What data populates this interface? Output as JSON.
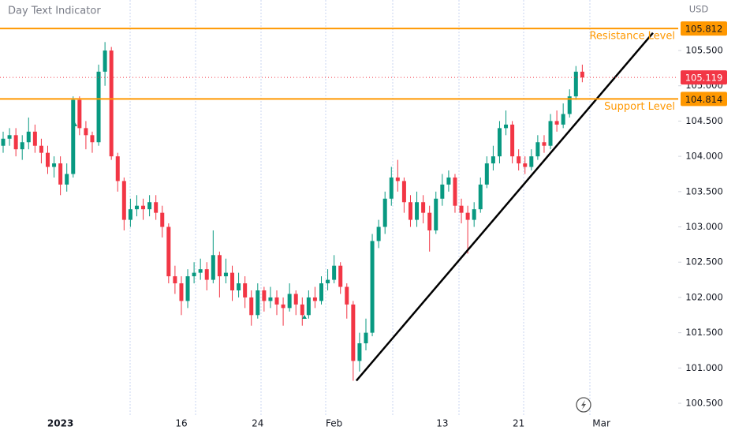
{
  "chart_data": {
    "type": "candlestick",
    "title": "Day Text Indicator",
    "currency": "USD",
    "categories": [
      null,
      null,
      null,
      null,
      null,
      null,
      null,
      null,
      null,
      "2023",
      null,
      null,
      null,
      null,
      null,
      null,
      null,
      null,
      null,
      null,
      null,
      null,
      null,
      null,
      null,
      null,
      null,
      null,
      "16",
      null,
      null,
      null,
      null,
      null,
      null,
      null,
      null,
      null,
      null,
      null,
      "24",
      null,
      null,
      null,
      null,
      null,
      null,
      null,
      null,
      null,
      null,
      null,
      "Feb",
      null,
      null,
      null,
      null,
      null,
      null,
      null,
      null,
      null,
      null,
      null,
      null,
      null,
      null,
      null,
      null,
      "13",
      null,
      null,
      null,
      null,
      null,
      null,
      null,
      null,
      null,
      null,
      null,
      "21",
      null,
      null,
      null,
      null,
      null,
      null,
      null,
      null,
      null,
      null,
      null,
      null,
      "Mar"
    ],
    "open": [
      104.15,
      104.25,
      104.3,
      104.1,
      104.2,
      104.35,
      104.15,
      104.05,
      103.85,
      103.9,
      103.6,
      103.75,
      104.8,
      104.4,
      104.3,
      104.2,
      105.2,
      105.5,
      104.0,
      103.65,
      103.1,
      103.25,
      103.3,
      103.25,
      103.35,
      103.2,
      103.0,
      102.3,
      102.2,
      101.95,
      102.3,
      102.35,
      102.4,
      102.25,
      102.6,
      102.3,
      102.35,
      102.1,
      102.2,
      102.0,
      101.75,
      102.1,
      101.95,
      102.0,
      101.9,
      101.85,
      102.05,
      101.9,
      101.75,
      102.0,
      101.95,
      102.2,
      102.25,
      102.45,
      102.15,
      101.9,
      101.1,
      101.35,
      101.5,
      102.8,
      103.0,
      103.4,
      103.7,
      103.65,
      103.35,
      103.1,
      103.35,
      103.2,
      102.95,
      103.4,
      103.6,
      103.7,
      103.3,
      103.2,
      103.1,
      103.25,
      103.6,
      103.9,
      104.0,
      104.4,
      104.45,
      104.0,
      103.9,
      103.85,
      104.0,
      104.2,
      104.15,
      104.5,
      104.45,
      104.6,
      104.85,
      105.2,
      null,
      null,
      null
    ],
    "high": [
      104.35,
      104.4,
      104.4,
      104.3,
      104.55,
      104.45,
      104.25,
      104.15,
      104.0,
      104.0,
      103.9,
      104.85,
      104.85,
      104.5,
      104.35,
      105.3,
      105.62,
      105.55,
      104.05,
      103.7,
      103.4,
      103.45,
      103.4,
      103.45,
      103.45,
      103.3,
      103.05,
      102.45,
      102.3,
      102.4,
      102.5,
      102.55,
      102.5,
      102.95,
      102.65,
      102.55,
      102.45,
      102.35,
      102.3,
      102.1,
      102.2,
      102.15,
      102.15,
      102.1,
      102.0,
      102.2,
      102.1,
      102.0,
      102.1,
      102.15,
      102.3,
      102.4,
      102.6,
      102.5,
      102.2,
      101.95,
      101.5,
      101.7,
      102.9,
      103.1,
      103.5,
      103.85,
      103.95,
      103.7,
      103.45,
      103.5,
      103.45,
      103.3,
      103.5,
      103.75,
      103.8,
      103.75,
      103.4,
      103.3,
      103.35,
      103.7,
      104.0,
      104.15,
      104.5,
      104.65,
      104.5,
      104.1,
      104.0,
      104.1,
      104.3,
      104.3,
      104.6,
      104.65,
      104.75,
      104.95,
      105.28,
      105.3,
      null,
      null,
      null
    ],
    "low": [
      104.05,
      104.15,
      104.0,
      103.95,
      104.1,
      104.05,
      103.9,
      103.75,
      103.7,
      103.45,
      103.5,
      103.7,
      104.3,
      104.1,
      104.05,
      104.15,
      105.0,
      103.95,
      103.5,
      102.95,
      103.0,
      103.15,
      103.1,
      103.15,
      103.1,
      102.85,
      102.2,
      102.05,
      101.75,
      101.85,
      102.2,
      102.25,
      102.1,
      102.2,
      102.0,
      102.2,
      101.95,
      102.0,
      101.85,
      101.6,
      101.7,
      101.8,
      101.85,
      101.75,
      101.6,
      101.8,
      101.75,
      101.6,
      101.7,
      101.85,
      101.9,
      102.1,
      102.2,
      102.05,
      101.7,
      100.82,
      100.95,
      101.25,
      101.45,
      102.7,
      102.9,
      103.3,
      103.5,
      103.2,
      103.0,
      103.0,
      103.05,
      102.65,
      102.9,
      103.3,
      103.5,
      103.2,
      103.05,
      102.62,
      103.0,
      103.2,
      103.55,
      103.8,
      103.9,
      104.3,
      103.9,
      103.8,
      103.75,
      103.8,
      103.95,
      104.05,
      104.1,
      104.35,
      104.4,
      104.55,
      104.8,
      105.05,
      null,
      null,
      null
    ],
    "close": [
      104.25,
      104.3,
      104.1,
      104.2,
      104.35,
      104.15,
      104.05,
      103.85,
      103.9,
      103.6,
      103.75,
      104.8,
      104.4,
      104.3,
      104.2,
      105.2,
      105.5,
      104.0,
      103.65,
      103.1,
      103.25,
      103.3,
      103.25,
      103.35,
      103.2,
      103.0,
      102.3,
      102.2,
      101.95,
      102.3,
      102.35,
      102.4,
      102.25,
      102.6,
      102.3,
      102.35,
      102.1,
      102.2,
      102.0,
      101.75,
      102.1,
      101.95,
      102.0,
      101.9,
      101.85,
      102.05,
      101.9,
      101.75,
      102.0,
      101.95,
      102.2,
      102.25,
      102.45,
      102.15,
      101.9,
      101.1,
      101.35,
      101.5,
      102.8,
      103.0,
      103.4,
      103.7,
      103.65,
      103.35,
      103.1,
      103.35,
      103.2,
      102.95,
      103.4,
      103.6,
      103.7,
      103.3,
      103.2,
      103.1,
      103.25,
      103.6,
      103.9,
      104.0,
      104.4,
      104.45,
      104.0,
      103.9,
      103.85,
      104.0,
      104.2,
      104.15,
      104.5,
      104.45,
      104.6,
      104.85,
      105.2,
      105.119,
      null,
      null,
      null
    ],
    "up_color": "#089981",
    "down_color": "#f23645",
    "ylim": [
      100.288,
      106.216
    ],
    "yticks": [
      {
        "value": 100.5,
        "label": "100.500"
      },
      {
        "value": 101,
        "label": "101.000"
      },
      {
        "value": 101.5,
        "label": "101.500"
      },
      {
        "value": 102,
        "label": "102.000"
      },
      {
        "value": 102.5,
        "label": "102.500"
      },
      {
        "value": 103,
        "label": "103.000"
      },
      {
        "value": 103.5,
        "label": "103.500"
      },
      {
        "value": 104,
        "label": "104.000"
      },
      {
        "value": 104.5,
        "label": "104.500"
      },
      {
        "value": 105,
        "label": "105.000"
      },
      {
        "value": 105.5,
        "label": "105.500"
      }
    ],
    "levels": [
      {
        "name": "Resistance Level",
        "value": 105.812,
        "label": "105.812",
        "color": "#ff9800"
      },
      {
        "name": "Support Level",
        "value": 104.814,
        "label": "104.814",
        "color": "#ff9800"
      }
    ],
    "last_price": {
      "value": 105.119,
      "label": "105.119",
      "color": "#f23645"
    },
    "trendline": {
      "x": [
        55.5,
        102.1
      ],
      "y": [
        100.82,
        105.75
      ],
      "color": "#000000"
    }
  }
}
